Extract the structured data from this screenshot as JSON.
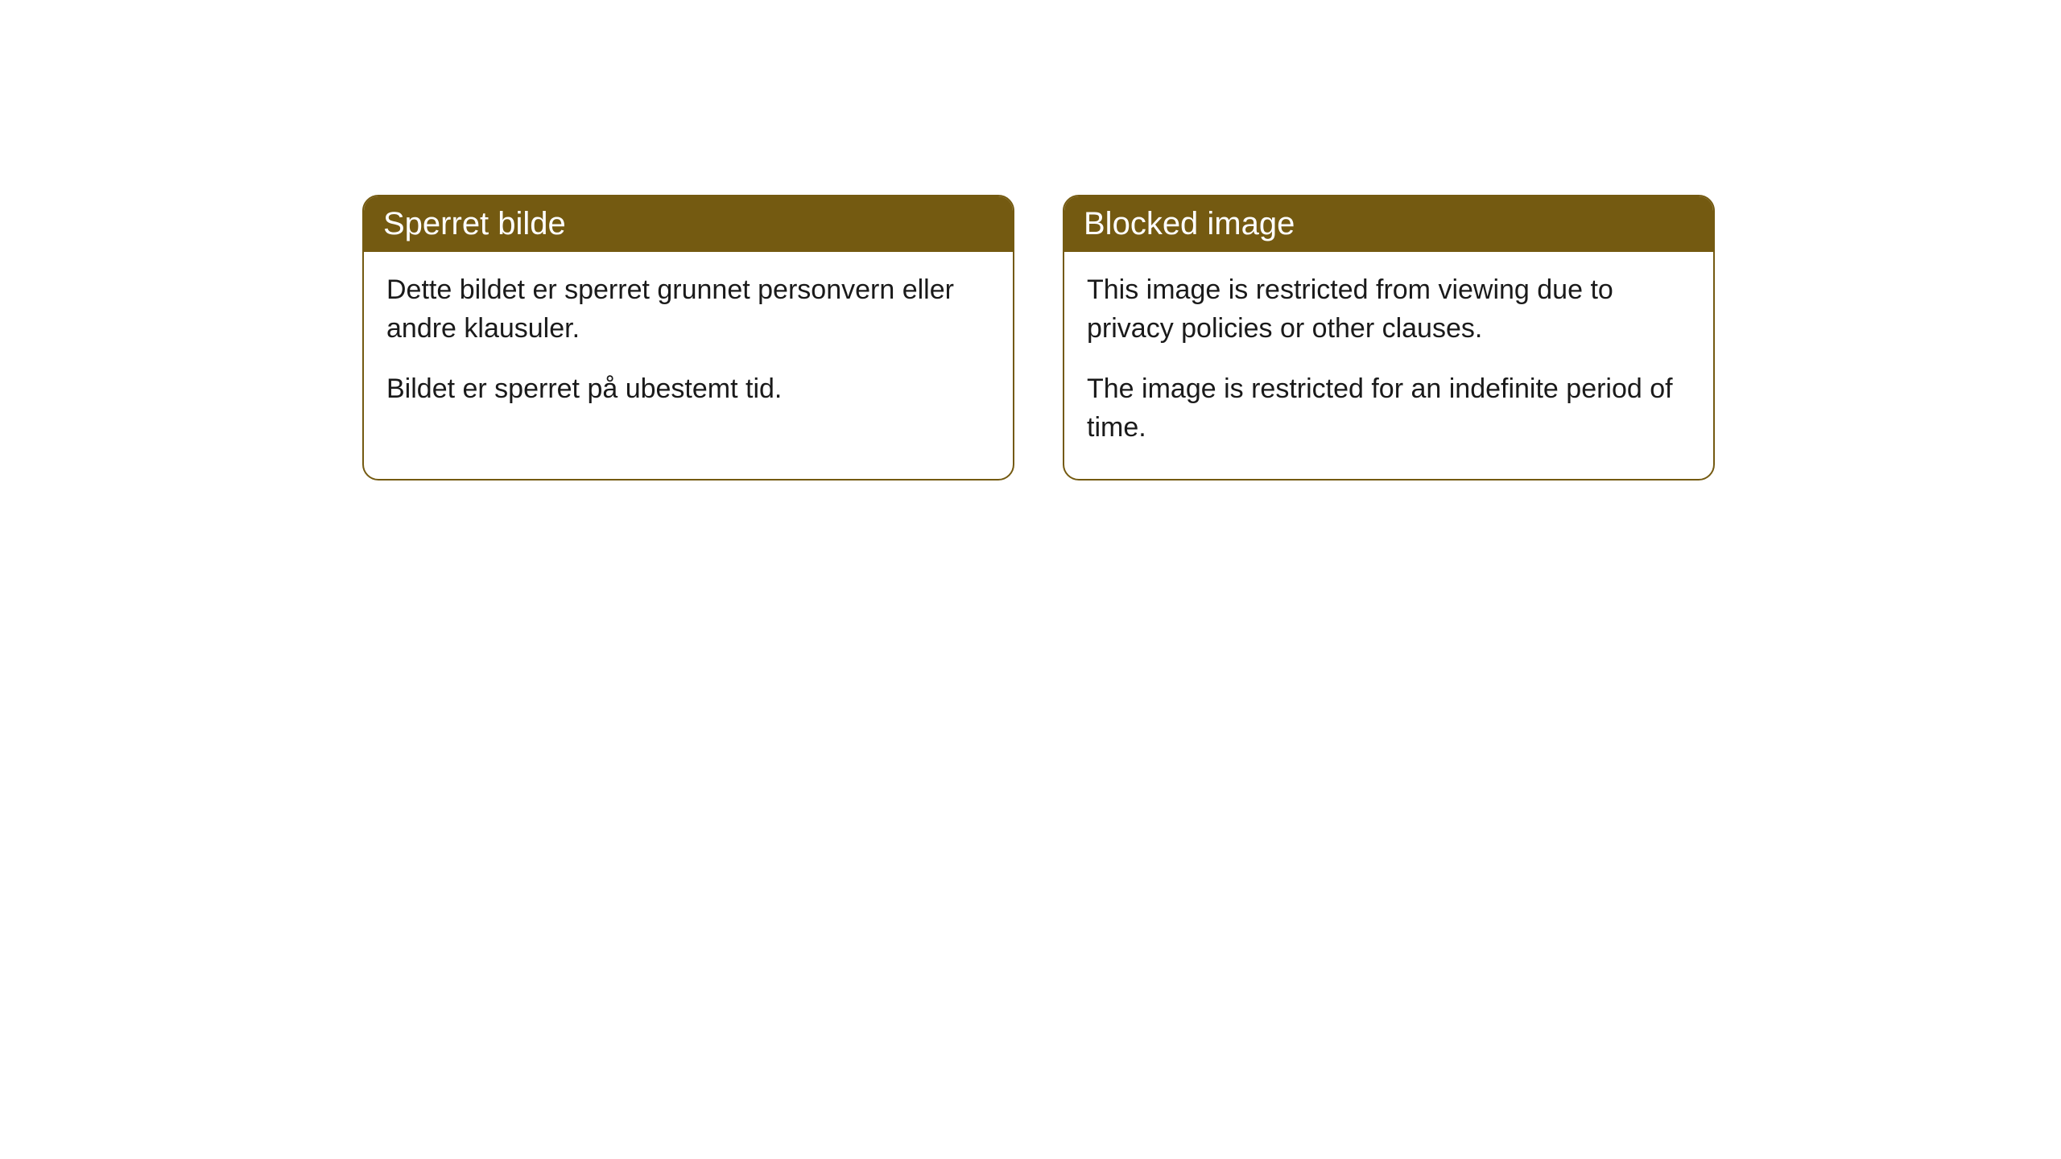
{
  "cards": [
    {
      "title": "Sperret bilde",
      "paragraph1": "Dette bildet er sperret grunnet personvern eller andre klausuler.",
      "paragraph2": "Bildet er sperret på ubestemt tid."
    },
    {
      "title": "Blocked image",
      "paragraph1": "This image is restricted from viewing due to privacy policies or other clauses.",
      "paragraph2": "The image is restricted for an indefinite period of time."
    }
  ],
  "theme": {
    "header_background": "#745a11",
    "header_text_color": "#ffffff",
    "border_color": "#745a11",
    "body_background": "#ffffff",
    "body_text_color": "#1a1a1a",
    "page_background": "#ffffff",
    "border_radius": 20,
    "title_fontsize": 40,
    "body_fontsize": 34
  }
}
